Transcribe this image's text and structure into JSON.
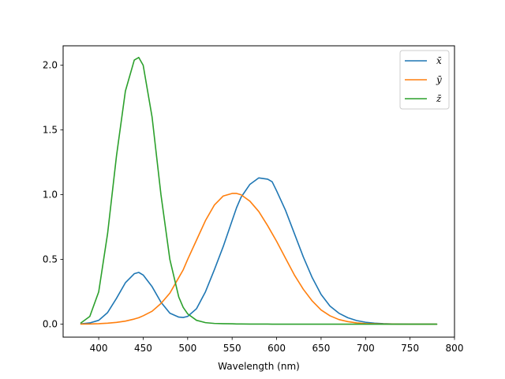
{
  "chart_data": {
    "type": "line",
    "title": "",
    "xlabel": "Wavelength (nm)",
    "ylabel": "",
    "xlim": [
      360,
      800
    ],
    "ylim": [
      -0.1,
      2.15
    ],
    "xticks": [
      400,
      450,
      500,
      550,
      600,
      650,
      700,
      750,
      800
    ],
    "yticks": [
      0.0,
      0.5,
      1.0,
      1.5,
      2.0
    ],
    "xtick_labels": [
      "400",
      "450",
      "500",
      "550",
      "600",
      "650",
      "700",
      "750",
      "800"
    ],
    "ytick_labels": [
      "0.0",
      "0.5",
      "1.0",
      "1.5",
      "2.0"
    ],
    "grid": false,
    "legend_position": "top-right",
    "x": [
      380,
      390,
      400,
      410,
      420,
      430,
      440,
      445,
      450,
      460,
      470,
      480,
      490,
      495,
      500,
      510,
      520,
      530,
      540,
      550,
      555,
      560,
      570,
      580,
      590,
      595,
      600,
      610,
      620,
      630,
      640,
      650,
      660,
      670,
      680,
      690,
      700,
      710,
      720,
      730,
      740,
      750,
      760,
      770,
      780
    ],
    "series": [
      {
        "name": "x̄",
        "color": "#1f77b4",
        "values": [
          0.003,
          0.01,
          0.03,
          0.09,
          0.2,
          0.32,
          0.39,
          0.4,
          0.38,
          0.29,
          0.17,
          0.085,
          0.055,
          0.052,
          0.06,
          0.12,
          0.25,
          0.42,
          0.6,
          0.8,
          0.9,
          0.98,
          1.08,
          1.13,
          1.12,
          1.1,
          1.03,
          0.88,
          0.7,
          0.52,
          0.36,
          0.23,
          0.14,
          0.085,
          0.05,
          0.028,
          0.015,
          0.008,
          0.004,
          0.002,
          0.001,
          0.0005,
          0.0002,
          0.0001,
          0.0
        ]
      },
      {
        "name": "ȳ",
        "color": "#ff7f0e",
        "values": [
          0.001,
          0.002,
          0.004,
          0.008,
          0.014,
          0.024,
          0.04,
          0.05,
          0.065,
          0.1,
          0.16,
          0.24,
          0.36,
          0.42,
          0.5,
          0.65,
          0.8,
          0.92,
          0.99,
          1.01,
          1.01,
          1.0,
          0.95,
          0.87,
          0.76,
          0.7,
          0.64,
          0.51,
          0.38,
          0.27,
          0.18,
          0.11,
          0.065,
          0.036,
          0.02,
          0.01,
          0.005,
          0.003,
          0.0015,
          0.0008,
          0.0004,
          0.0002,
          0.0001,
          0.0,
          0.0
        ]
      },
      {
        "name": "z̄",
        "color": "#2ca02c",
        "values": [
          0.01,
          0.06,
          0.25,
          0.7,
          1.3,
          1.8,
          2.04,
          2.06,
          2.0,
          1.6,
          1.0,
          0.5,
          0.21,
          0.13,
          0.08,
          0.03,
          0.012,
          0.006,
          0.004,
          0.003,
          0.002,
          0.002,
          0.001,
          0.001,
          0.001,
          0.0005,
          0.0005,
          0.0003,
          0.0002,
          0.0001,
          0.0001,
          0.0,
          0.0,
          0.0,
          0.0,
          0.0,
          0.0,
          0.0,
          0.0,
          0.0,
          0.0,
          0.0,
          0.0,
          0.0,
          0.0
        ]
      }
    ]
  }
}
